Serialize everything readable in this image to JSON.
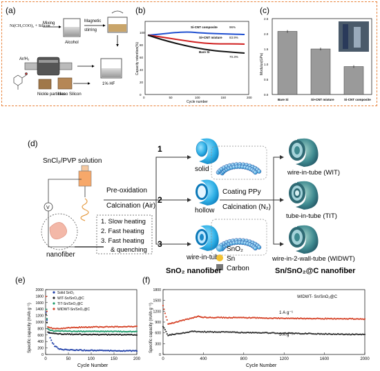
{
  "figure_top": {
    "panel_a": {
      "letter": "(a)",
      "reagents": "Ni(CH₃COO)₂ + Silicon",
      "mixing": "Mixing",
      "magnetic": "Magnetic",
      "stirring": "stirring",
      "alcohol": "Alcohol",
      "gas": "Ar/H₂",
      "nickle": "Nickle particles",
      "nano": "Nano Silicon",
      "hf": "1% HF"
    },
    "panel_b": {
      "letter": "(b)",
      "legend": [
        "Si-CNT composite",
        "Si+CNT mixture",
        "Bare Si"
      ],
      "end_labels": [
        "96%",
        "83.9%",
        "70.3%"
      ],
      "ylabel": "Capacity retention(%)",
      "xlabel": "Cycle number",
      "yticks": [
        "0",
        "20",
        "40",
        "60",
        "80",
        "100"
      ],
      "xticks": [
        "0",
        "50",
        "100",
        "150",
        "200"
      ]
    },
    "panel_c": {
      "letter": "(c)",
      "ylabel": "Modulus(GPa)",
      "yticks": [
        "0.0",
        "0.5",
        "1.0",
        "1.5",
        "2.0",
        "2.5"
      ],
      "categories": [
        "Bare Si",
        "Si+CNT mixture",
        "Si-CNT composite"
      ]
    }
  },
  "panel_d": {
    "letter": "(d)",
    "solution": "SnCl₂/PVP solution",
    "voltage": "V",
    "nanofiber": "nanofiber",
    "preox": "Pre-oxidation",
    "calc_air": "Calcination (Air)",
    "steps": [
      "1. Slow heating",
      "2. Fast heating",
      "3. Fast heating",
      "& quenching"
    ],
    "route_nums": [
      "1",
      "2",
      "3"
    ],
    "morph": [
      "solid",
      "hollow",
      "wire-in-tube"
    ],
    "coating": "Coating PPy",
    "calc_n2": "Calcination (N₂)",
    "products": [
      "wire-in-tube (WIT)",
      "tube-in-tube (TIT)",
      "wire-in-2-wall-tube (WIDWT)"
    ],
    "legend": [
      "SnO₂",
      "Sn",
      "Carbon"
    ],
    "caption_left": "SnO₂ nanofiber",
    "caption_right": "Sn/SnO₂@C nanofiber"
  },
  "chart_data": [
    {
      "type": "scatter",
      "panel": "(e)",
      "xlabel": "Cycle Number",
      "ylabel": "Specific capacity (mAh g⁻¹)",
      "xlim": [
        0,
        200
      ],
      "ylim": [
        0,
        2000
      ],
      "xticks": [
        "0",
        "50",
        "100",
        "150",
        "200"
      ],
      "yticks": [
        "0",
        "200",
        "400",
        "600",
        "800",
        "1000",
        "1200",
        "1400",
        "1600",
        "1800",
        "2000"
      ],
      "legend_position": "top-left",
      "series": [
        {
          "name": "Solid SnO₂",
          "color": "#1f3fa8",
          "x": [
            1,
            5,
            10,
            15,
            20,
            30,
            40,
            60,
            80,
            100,
            150,
            200
          ],
          "y": [
            1300,
            800,
            520,
            360,
            260,
            170,
            150,
            140,
            130,
            125,
            115,
            110
          ]
        },
        {
          "name": "WIT-Sn/SnO₂@C",
          "color": "#222222",
          "x": [
            1,
            5,
            10,
            20,
            40,
            60,
            100,
            150,
            200
          ],
          "y": [
            1250,
            700,
            660,
            640,
            630,
            620,
            615,
            610,
            605
          ]
        },
        {
          "name": "TIT-Sn/SnO₂@C",
          "color": "#1e9a6a",
          "x": [
            1,
            5,
            10,
            20,
            40,
            60,
            100,
            150,
            200
          ],
          "y": [
            1400,
            790,
            740,
            720,
            715,
            712,
            710,
            708,
            705
          ]
        },
        {
          "name": "WIDWT-Sn/SnO₂@C",
          "color": "#d6452a",
          "x": [
            1,
            5,
            10,
            20,
            40,
            60,
            100,
            150,
            200
          ],
          "y": [
            1800,
            860,
            820,
            800,
            810,
            830,
            845,
            855,
            860
          ]
        }
      ]
    },
    {
      "type": "scatter",
      "panel": "(f)",
      "xlabel": "Cycle Number",
      "ylabel": "Specific capacity (mAh g⁻¹)",
      "xlim": [
        0,
        2000
      ],
      "ylim": [
        0,
        1800
      ],
      "xticks": [
        "0",
        "400",
        "800",
        "1200",
        "1600",
        "2000"
      ],
      "yticks": [
        "0",
        "300",
        "600",
        "900",
        "1200",
        "1500",
        "1800"
      ],
      "legend": "WIDWT- Sn/SnO₂@C",
      "series": [
        {
          "name": "1 A g⁻¹",
          "color": "#d6452a",
          "x": [
            0,
            50,
            100,
            200,
            300,
            350,
            400,
            600,
            800,
            1000,
            1200,
            1400,
            1600,
            1800,
            2000
          ],
          "y": [
            1350,
            850,
            880,
            950,
            1020,
            1060,
            1030,
            1025,
            1020,
            1010,
            1005,
            1000,
            995,
            990,
            985
          ]
        },
        {
          "name": "5 A g⁻¹",
          "color": "#333333",
          "x": [
            0,
            50,
            100,
            200,
            300,
            400,
            600,
            800,
            1000,
            1200,
            1400,
            1600,
            1800,
            2000
          ],
          "y": [
            780,
            530,
            560,
            600,
            640,
            630,
            620,
            610,
            600,
            590,
            580,
            570,
            560,
            550
          ]
        }
      ]
    }
  ]
}
